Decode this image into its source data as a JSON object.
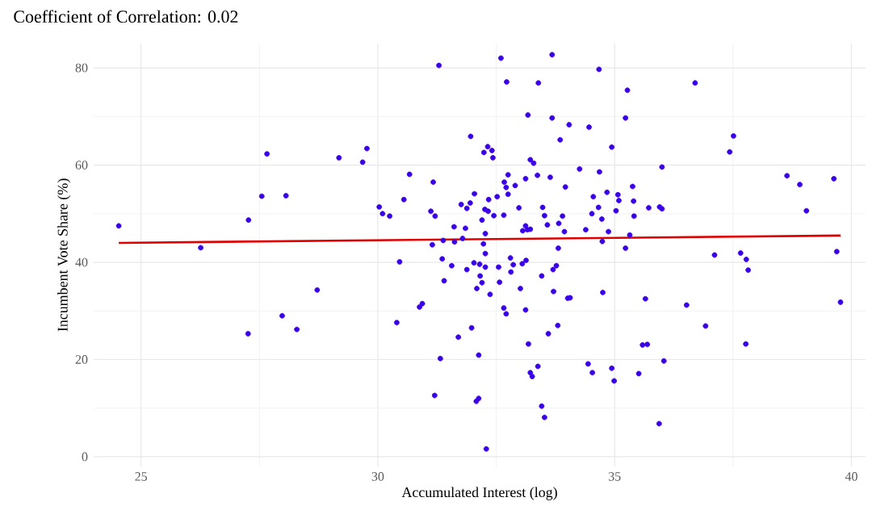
{
  "chart_data": {
    "type": "scatter",
    "title": "Coefficient of Correlation: 0.02",
    "xlabel": "Accumulated Interest (log)",
    "ylabel": "Incumbent Vote Share (%)",
    "xlim": [
      24.0,
      40.3
    ],
    "ylim": [
      -2,
      85
    ],
    "xticks": [
      25,
      30,
      35,
      40
    ],
    "yticks": [
      0,
      20,
      40,
      60,
      80
    ],
    "grid": true,
    "series": [
      {
        "marker": "circle",
        "color": "#3a00e8",
        "x": [
          24.53,
          26.26,
          27.27,
          27.55,
          27.66,
          28.06,
          27.26,
          27.98,
          28.29,
          28.72,
          29.18,
          29.68,
          29.77,
          30.03,
          30.1,
          30.25,
          30.46,
          30.4,
          30.55,
          30.67,
          31.29,
          31.17,
          31.12,
          31.21,
          31.61,
          31.15,
          31.38,
          31.62,
          31.36,
          31.79,
          31.85,
          31.76,
          31.88,
          31.95,
          32.04,
          31.96,
          32.24,
          32.32,
          32.41,
          32.43,
          32.34,
          32.26,
          32.33,
          32.2,
          32.27,
          32.45,
          32.52,
          32.66,
          32.71,
          32.67,
          32.75,
          32.75,
          32.9,
          32.98,
          33.12,
          33.22,
          33.29,
          33.37,
          33.64,
          33.96,
          34.26,
          33.48,
          33.52,
          33.58,
          33.82,
          33.9,
          33.94,
          33.12,
          33.16,
          33.06,
          33.22,
          32.23,
          32.27,
          32.8,
          33.13,
          33.81,
          32.6,
          33.68,
          32.72,
          33.39,
          33.17,
          33.68,
          34.04,
          33.85,
          31.56,
          31.88,
          32.03,
          32.15,
          32.27,
          32.16,
          32.2,
          32.09,
          32.37,
          32.55,
          32.57,
          32.86,
          32.81,
          33.01,
          33.05,
          33.46,
          33.7,
          33.77,
          33.71,
          34.01,
          34.06,
          31.4,
          30.94,
          30.88,
          32.66,
          32.71,
          33.12,
          33.8,
          33.6,
          31.98,
          31.7,
          33.18,
          32.13,
          31.32,
          33.38,
          33.22,
          33.26,
          31.2,
          32.08,
          32.13,
          33.46,
          33.52,
          32.29,
          34.67,
          35.27,
          36.7,
          34.46,
          35.23,
          34.94,
          37.51,
          37.43,
          36.0,
          34.68,
          35.38,
          34.55,
          34.84,
          35.07,
          35.09,
          35.4,
          34.66,
          34.52,
          35.03,
          34.73,
          35.41,
          35.72,
          35.95,
          36.0,
          34.39,
          34.87,
          35.32,
          34.74,
          35.23,
          38.64,
          38.91,
          39.63,
          39.05,
          37.11,
          37.66,
          37.78,
          37.82,
          39.69,
          34.75,
          35.65,
          36.52,
          36.92,
          39.77,
          35.59,
          35.69,
          37.77,
          34.44,
          34.53,
          34.94,
          34.99,
          35.51,
          36.04,
          35.94
        ],
        "values": [
          47.5,
          43.0,
          48.7,
          53.6,
          62.3,
          53.7,
          25.3,
          29.0,
          26.2,
          34.3,
          61.5,
          60.6,
          63.4,
          51.4,
          50.0,
          49.5,
          40.1,
          27.6,
          52.9,
          58.1,
          80.5,
          56.5,
          50.5,
          49.5,
          47.3,
          43.6,
          44.5,
          44.2,
          40.7,
          44.9,
          47.0,
          51.9,
          51.1,
          52.2,
          54.1,
          65.9,
          62.6,
          63.8,
          63.0,
          61.5,
          52.9,
          50.9,
          50.5,
          48.7,
          45.9,
          49.6,
          53.5,
          49.7,
          55.4,
          56.5,
          58.0,
          54.0,
          55.8,
          51.2,
          57.2,
          61.1,
          60.4,
          57.9,
          57.5,
          55.5,
          59.2,
          51.3,
          49.6,
          47.7,
          48.0,
          49.5,
          46.3,
          47.5,
          46.7,
          46.5,
          46.8,
          43.8,
          41.8,
          40.9,
          40.4,
          42.9,
          82.0,
          82.7,
          77.1,
          76.9,
          70.3,
          69.7,
          68.3,
          65.2,
          39.3,
          38.5,
          39.9,
          39.6,
          39.0,
          37.2,
          35.8,
          34.6,
          33.4,
          39.0,
          35.9,
          39.5,
          38.0,
          34.6,
          39.7,
          37.2,
          38.5,
          39.3,
          34.0,
          32.6,
          32.7,
          36.2,
          31.5,
          30.8,
          30.6,
          29.4,
          30.2,
          27.0,
          25.3,
          26.5,
          24.6,
          23.2,
          20.9,
          20.2,
          18.6,
          17.3,
          16.5,
          12.6,
          11.4,
          12.0,
          10.4,
          8.1,
          1.6,
          79.7,
          75.4,
          76.9,
          67.8,
          69.7,
          63.7,
          66.0,
          62.7,
          59.6,
          58.6,
          55.6,
          53.5,
          54.4,
          53.9,
          52.7,
          52.6,
          51.3,
          50.0,
          50.6,
          48.9,
          49.5,
          51.2,
          51.4,
          51.0,
          46.7,
          46.3,
          45.6,
          44.3,
          42.9,
          57.8,
          56.0,
          57.2,
          50.6,
          41.5,
          41.9,
          40.6,
          38.4,
          42.2,
          33.8,
          32.5,
          31.2,
          26.9,
          31.8,
          23.0,
          23.1,
          23.2,
          19.1,
          17.3,
          18.2,
          15.6,
          17.1,
          19.7,
          6.8
        ]
      },
      {
        "type": "line",
        "marker": "none",
        "color": "#e00000",
        "x": [
          24.53,
          39.77
        ],
        "values": [
          44.0,
          45.5
        ]
      }
    ]
  }
}
